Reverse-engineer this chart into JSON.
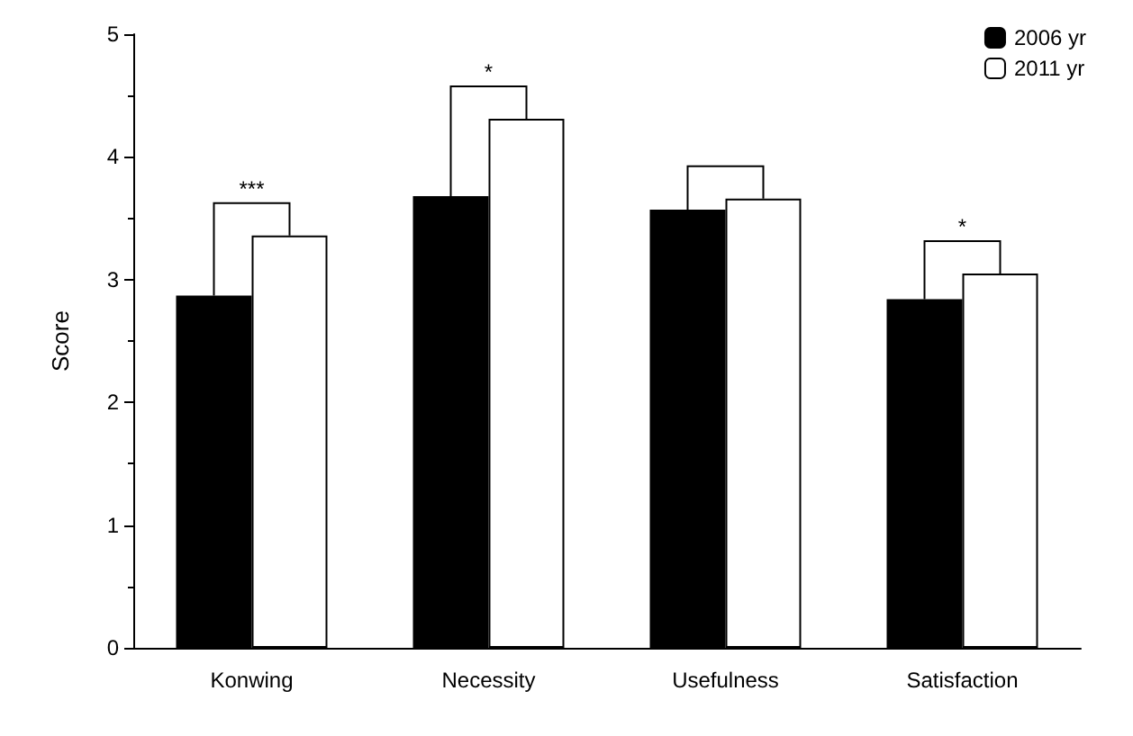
{
  "chart_data": {
    "type": "bar",
    "ylabel": "Score",
    "categories": [
      "Konwing",
      "Necessity",
      "Usefulness",
      "Satisfaction"
    ],
    "series": [
      {
        "name": "2006 yr",
        "color": "#000000",
        "values": [
          2.87,
          3.68,
          3.57,
          2.84
        ]
      },
      {
        "name": "2011 yr",
        "color": "#ffffff",
        "values": [
          3.36,
          4.31,
          3.66,
          3.05
        ]
      }
    ],
    "ylim": [
      0,
      5
    ],
    "yticks": [
      0,
      1,
      2,
      3,
      4,
      5
    ],
    "grid": false,
    "legend": "top right",
    "annotations": [
      "***",
      "*",
      "*"
    ]
  }
}
